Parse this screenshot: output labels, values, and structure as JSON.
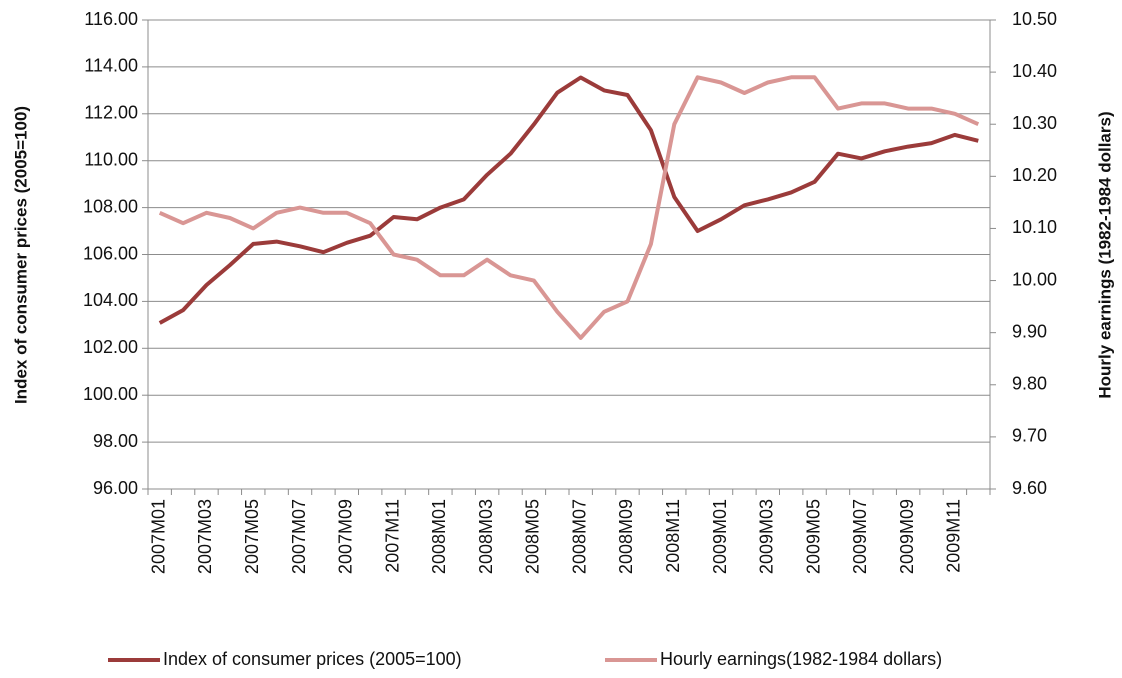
{
  "chart_data": {
    "type": "line",
    "y_label": "Index of consumer prices (2005=100)",
    "y2_label": "Hourly earnings (1982-1984 dollars)",
    "categories": [
      "2007M01",
      null,
      "2007M03",
      null,
      "2007M05",
      null,
      "2007M07",
      null,
      "2007M09",
      null,
      "2007M11",
      null,
      "2008M01",
      null,
      "2008M03",
      null,
      "2008M05",
      null,
      "2008M07",
      null,
      "2008M09",
      null,
      "2008M11",
      null,
      "2009M01",
      null,
      "2009M03",
      null,
      "2009M05",
      null,
      "2009M07",
      null,
      "2009M09",
      null,
      "2009M11",
      null
    ],
    "series": [
      {
        "name": "Index of consumer prices (2005=100)",
        "color": "#9b3b3a",
        "axis": "y",
        "values": [
          103.08,
          103.63,
          104.7,
          105.55,
          106.45,
          106.55,
          106.35,
          106.1,
          106.5,
          106.8,
          107.6,
          107.5,
          108.0,
          108.35,
          109.4,
          110.3,
          111.55,
          112.9,
          113.55,
          113.0,
          112.8,
          111.3,
          108.45,
          107.0,
          107.5,
          108.1,
          108.35,
          108.65,
          109.1,
          110.3,
          110.1,
          110.4,
          110.6,
          110.75,
          111.1,
          110.85
        ]
      },
      {
        "name": "Hourly earnings(1982-1984 dollars)",
        "color": "#d99694",
        "axis": "y2",
        "values": [
          10.13,
          10.11,
          10.13,
          10.12,
          10.1,
          10.13,
          10.14,
          10.13,
          10.13,
          10.11,
          10.05,
          10.04,
          10.01,
          10.01,
          10.04,
          10.01,
          10.0,
          9.94,
          9.89,
          9.94,
          9.96,
          10.07,
          10.3,
          10.39,
          10.38,
          10.36,
          10.38,
          10.39,
          10.39,
          10.33,
          10.34,
          10.34,
          10.33,
          10.33,
          10.32,
          10.3
        ]
      }
    ],
    "ylim": [
      96,
      116
    ],
    "yticks": [
      {
        "value": 96,
        "label": "96.00"
      },
      {
        "value": 98,
        "label": "98.00"
      },
      {
        "value": 100,
        "label": "100.00"
      },
      {
        "value": 102,
        "label": "102.00"
      },
      {
        "value": 104,
        "label": "104.00"
      },
      {
        "value": 106,
        "label": "106.00"
      },
      {
        "value": 108,
        "label": "108.00"
      },
      {
        "value": 110,
        "label": "110.00"
      },
      {
        "value": 112,
        "label": "112.00"
      },
      {
        "value": 114,
        "label": "114.00"
      },
      {
        "value": 116,
        "label": "116.00"
      }
    ],
    "y2lim": [
      9.6,
      10.5
    ],
    "y2ticks": [
      {
        "value": 9.6,
        "label": "9.60"
      },
      {
        "value": 9.7,
        "label": "9.70"
      },
      {
        "value": 9.8,
        "label": "9.80"
      },
      {
        "value": 9.9,
        "label": "9.90"
      },
      {
        "value": 10.0,
        "label": "10.00"
      },
      {
        "value": 10.1,
        "label": "10.10"
      },
      {
        "value": 10.2,
        "label": "10.20"
      },
      {
        "value": 10.3,
        "label": "10.30"
      },
      {
        "value": 10.4,
        "label": "10.40"
      },
      {
        "value": 10.5,
        "label": "10.50"
      }
    ],
    "grid": true,
    "legend": "bottom"
  }
}
